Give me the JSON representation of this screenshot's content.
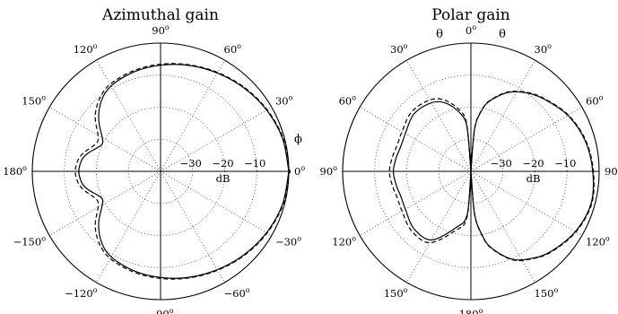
{
  "chart_data": [
    {
      "type": "polar",
      "title": "Azimuthal gain",
      "variable_label": "ϕ",
      "radial_unit": "dB",
      "radial_ticks": [
        "−30",
        "−20",
        "−10"
      ],
      "radial_range_db": [
        -40,
        0
      ],
      "angle_ticks": [
        {
          "label": "0",
          "deg": 0
        },
        {
          "label": "30",
          "deg": 30
        },
        {
          "label": "60",
          "deg": 60
        },
        {
          "label": "90",
          "deg": 90
        },
        {
          "label": "120",
          "deg": 120
        },
        {
          "label": "150",
          "deg": 150
        },
        {
          "label": "180",
          "deg": 180
        },
        {
          "label": "−150",
          "deg": -150
        },
        {
          "label": "−120",
          "deg": -120
        },
        {
          "label": "−90",
          "deg": -90
        },
        {
          "label": "−60",
          "deg": -60
        },
        {
          "label": "−30",
          "deg": -30
        }
      ],
      "degree_symbol": "o",
      "grid": true,
      "series": [
        {
          "style": "solid",
          "angles_deg": [
            0,
            15,
            30,
            45,
            60,
            75,
            90,
            105,
            120,
            130,
            140,
            150,
            155,
            160,
            165,
            170,
            175,
            180
          ],
          "gain_db": [
            0,
            -0.6,
            -1.8,
            -3.2,
            -4.6,
            -5.8,
            -6.9,
            -7.9,
            -9.2,
            -11.3,
            -14.8,
            -19.0,
            -19.9,
            -18.8,
            -17.0,
            -15.5,
            -14.8,
            -14.5
          ]
        },
        {
          "style": "dashed",
          "angles_deg": [
            0,
            15,
            30,
            45,
            60,
            75,
            90,
            105,
            120,
            130,
            140,
            150,
            155,
            160,
            165,
            170,
            175,
            180
          ],
          "gain_db": [
            0.1,
            -0.4,
            -1.6,
            -3.0,
            -4.4,
            -5.6,
            -6.6,
            -7.5,
            -8.6,
            -10.4,
            -13.4,
            -17.5,
            -18.3,
            -17.4,
            -15.8,
            -14.4,
            -13.7,
            -13.4
          ]
        }
      ]
    },
    {
      "type": "polar",
      "title": "Polar gain",
      "variable_label": "θ",
      "radial_unit": "dB",
      "radial_ticks": [
        "−30",
        "−20",
        "−10"
      ],
      "radial_range_db": [
        -40,
        0
      ],
      "angle_ticks": [
        {
          "label": "0",
          "deg": 0
        },
        {
          "label": "30",
          "deg": 30
        },
        {
          "label": "60",
          "deg": 60
        },
        {
          "label": "90",
          "deg": 90
        },
        {
          "label": "120",
          "deg": 120
        },
        {
          "label": "150",
          "deg": 150
        },
        {
          "label": "180",
          "deg": 180
        },
        {
          "label": "150",
          "deg": -150
        },
        {
          "label": "120",
          "deg": -120
        },
        {
          "label": "90",
          "deg": -90
        },
        {
          "label": "60",
          "deg": -60
        },
        {
          "label": "30",
          "deg": -30
        }
      ],
      "degree_symbol": "o",
      "grid": true,
      "series": [
        {
          "style": "solid",
          "angles_deg": [
            0,
            5,
            10,
            15,
            25,
            35,
            45,
            60,
            75,
            90,
            105,
            120,
            135,
            145,
            155,
            165,
            170,
            175,
            180
          ],
          "gain_db": [
            -40,
            -26.7,
            -20.8,
            -17.3,
            -12.9,
            -10.1,
            -8.0,
            -5.1,
            -3.1,
            -2.0,
            -1.2,
            -2.4,
            -4.7,
            -6.9,
            -9.8,
            -15.3,
            -19.8,
            -26.6,
            -40
          ],
          "back_lobe_angles_deg": [
            0,
            5,
            10,
            20,
            30,
            45,
            60,
            70,
            80,
            90,
            100,
            110,
            120,
            135,
            150,
            165,
            175,
            180
          ],
          "back_lobe_gain_db": [
            -40,
            -26.4,
            -21.8,
            -17.4,
            -15.3,
            -14.8,
            -16.4,
            -16.8,
            -16.3,
            -15.8,
            -16.3,
            -16.8,
            -16.4,
            -14.8,
            -15.3,
            -21.8,
            -26.4,
            -40
          ]
        },
        {
          "style": "dashed",
          "angles_deg": [
            0,
            5,
            10,
            15,
            25,
            35,
            45,
            60,
            75,
            90,
            105,
            120,
            135,
            145,
            155,
            165,
            170,
            175,
            180
          ],
          "gain_db": [
            -40,
            -26.4,
            -20.6,
            -17.1,
            -12.7,
            -9.9,
            -7.8,
            -4.9,
            -2.9,
            -1.8,
            -1.0,
            -2.2,
            -4.5,
            -6.7,
            -9.6,
            -15.1,
            -19.6,
            -26.4,
            -40
          ],
          "back_lobe_angles_deg": [
            0,
            5,
            10,
            20,
            30,
            45,
            60,
            70,
            80,
            90,
            100,
            110,
            120,
            135,
            150,
            165,
            175,
            180
          ],
          "back_lobe_gain_db": [
            -40,
            -25.4,
            -20.8,
            -16.4,
            -14.3,
            -13.8,
            -15.2,
            -15.6,
            -15.1,
            -14.6,
            -15.1,
            -15.6,
            -15.2,
            -13.8,
            -14.3,
            -20.8,
            -25.4,
            -40
          ]
        }
      ]
    }
  ]
}
